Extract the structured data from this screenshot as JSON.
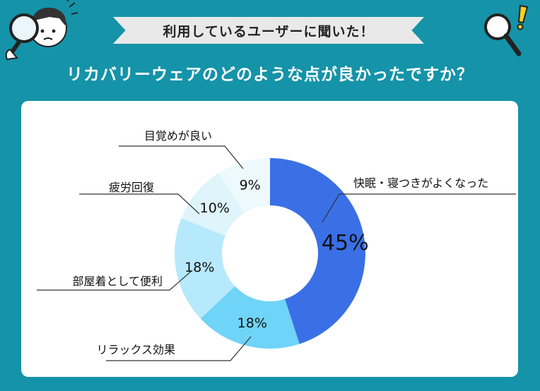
{
  "banner": "利用しているユーザーに聞いた！",
  "question": "リカバリーウェアのどのような点が良かったですか？",
  "chart_data": {
    "type": "pie",
    "donut": true,
    "categories": [
      "快眠・寝つきがよくなった",
      "リラックス効果",
      "部屋着として便利",
      "疲労回復",
      "目覚めが良い"
    ],
    "values": [
      45,
      18,
      18,
      10,
      9
    ],
    "value_labels": [
      "45%",
      "18%",
      "18%",
      "10%",
      "9%"
    ],
    "colors": [
      "#3a6fe6",
      "#6fd4f7",
      "#b6e9fb",
      "#dff4fb",
      "#eef9fd"
    ]
  }
}
